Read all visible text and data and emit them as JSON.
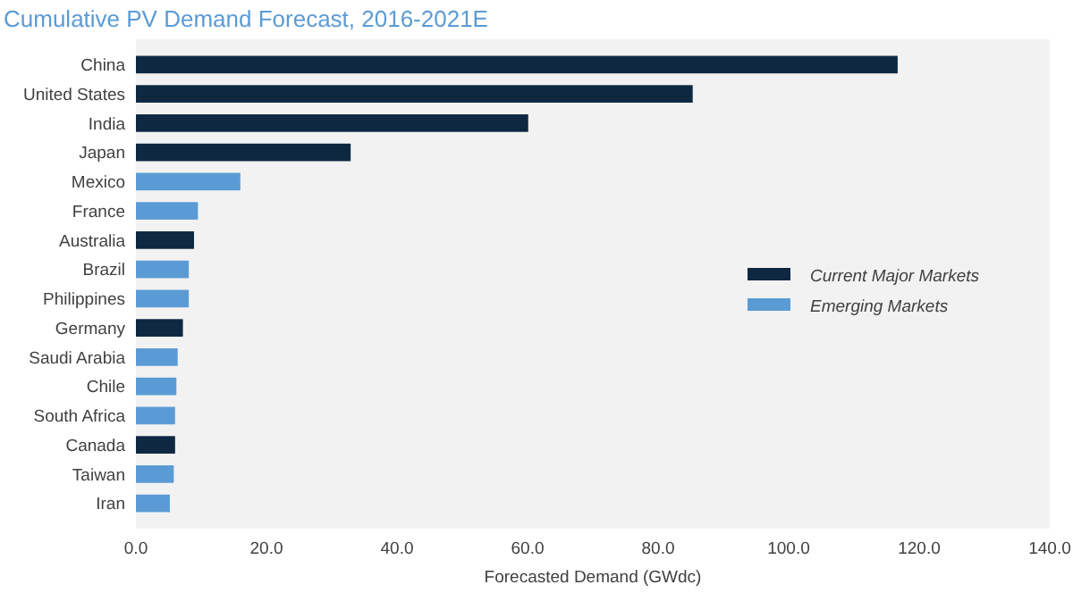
{
  "chart_data": {
    "type": "bar",
    "orientation": "horizontal",
    "title": "Cumulative PV Demand Forecast, 2016-2021E",
    "xlabel": "Forecasted Demand (GWdc)",
    "categories": [
      "China",
      "United States",
      "India",
      "Japan",
      "Mexico",
      "France",
      "Australia",
      "Brazil",
      "Philippines",
      "Germany",
      "Saudi Arabia",
      "Chile",
      "South Africa",
      "Canada",
      "Taiwan",
      "Iran"
    ],
    "series": [
      {
        "name": "Current Major Markets",
        "color": "#0e2841",
        "values": [
          116.7,
          85.3,
          60.1,
          32.9,
          null,
          null,
          8.9,
          null,
          null,
          7.2,
          null,
          null,
          null,
          6.0,
          null,
          null
        ]
      },
      {
        "name": "Emerging Markets",
        "color": "#5b9bd5",
        "values": [
          null,
          null,
          null,
          null,
          16.0,
          9.5,
          null,
          8.1,
          8.1,
          null,
          6.4,
          6.2,
          6.0,
          null,
          5.8,
          5.2
        ]
      }
    ],
    "xlim": [
      0,
      140
    ],
    "xticks": [
      {
        "value": 0,
        "label": "0.0"
      },
      {
        "value": 20,
        "label": "20.0"
      },
      {
        "value": 40,
        "label": "40.0"
      },
      {
        "value": 60,
        "label": "60.0"
      },
      {
        "value": 80,
        "label": "80.0"
      },
      {
        "value": 100,
        "label": "100.0"
      },
      {
        "value": 120,
        "label": "120.0"
      },
      {
        "value": 140,
        "label": "140.0"
      }
    ],
    "legend": "right",
    "grid": false
  }
}
